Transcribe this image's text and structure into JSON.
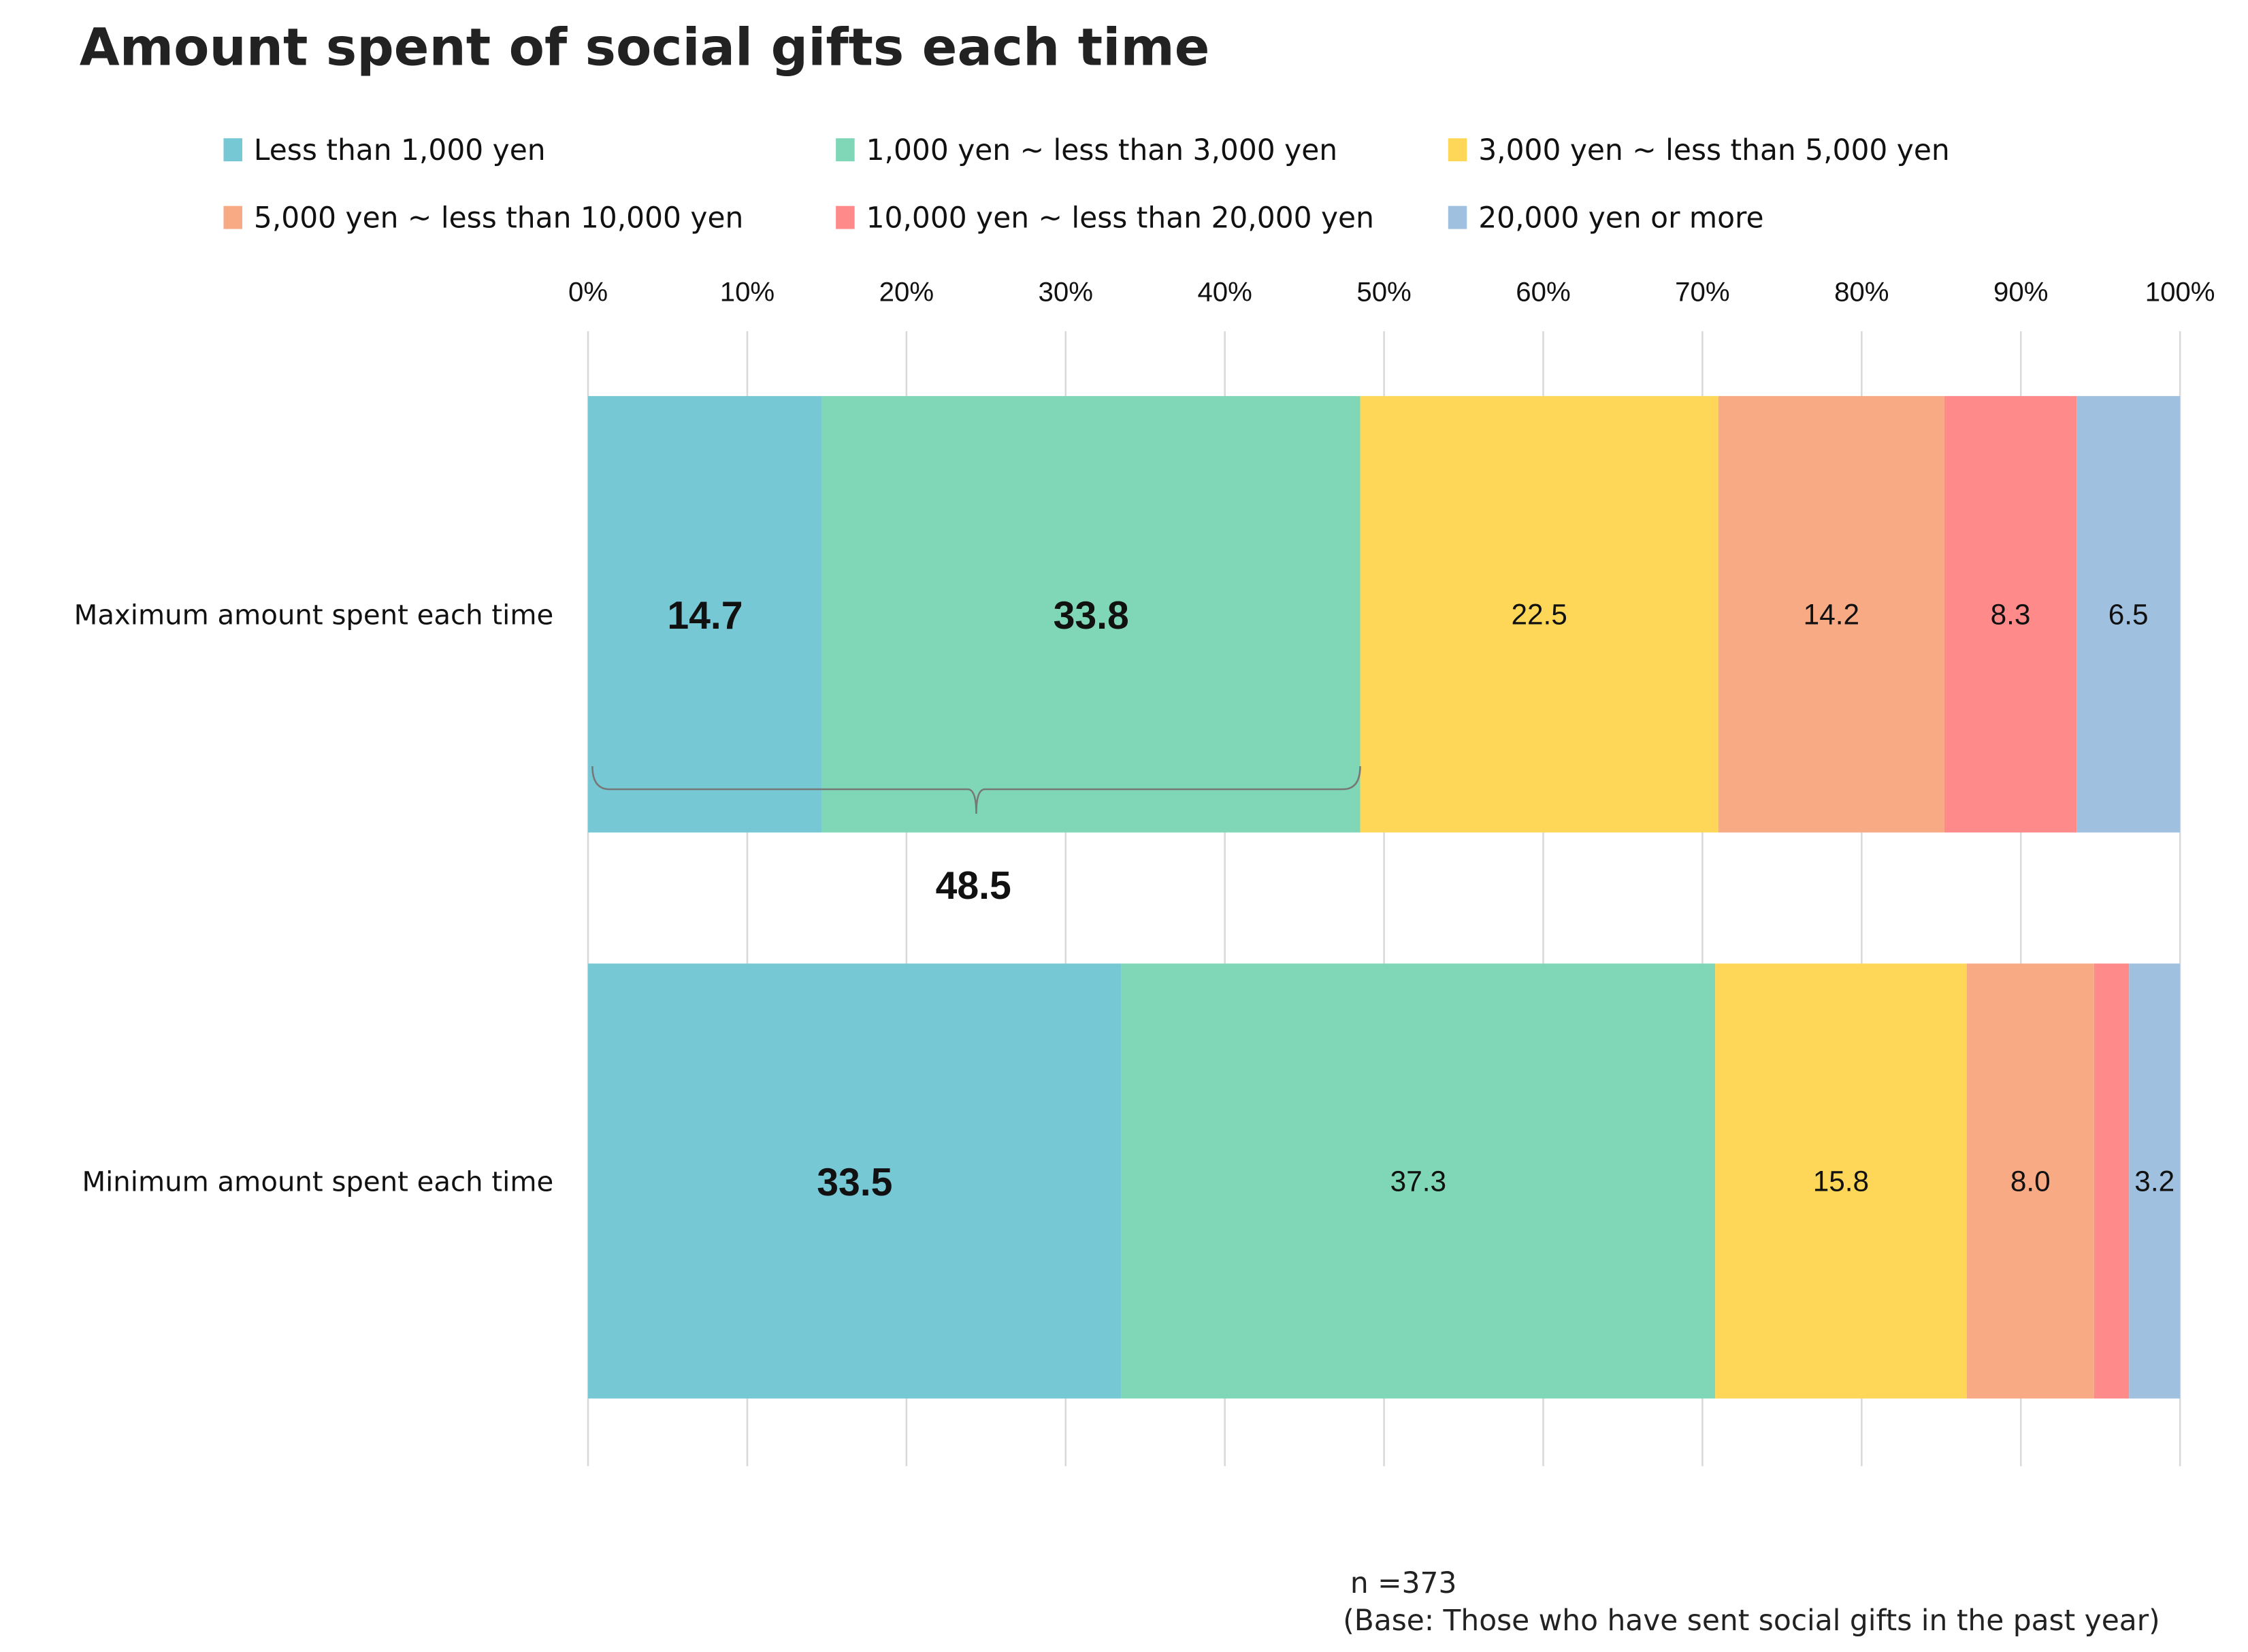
{
  "chart_data": {
    "type": "bar",
    "orientation": "horizontal",
    "stacked": "100%",
    "title": "Amount spent of social gifts each time",
    "categories": [
      "Maximum amount spent each time",
      "Minimum amount spent each time"
    ],
    "series": [
      {
        "name": "Less than 1,000 yen",
        "color": "#77c8d5",
        "values": [
          14.7,
          33.5
        ]
      },
      {
        "name": "1,000 yen ~ less than 3,000 yen",
        "color": "#7fd7b8",
        "values": [
          33.8,
          37.3
        ]
      },
      {
        "name": "3,000 yen ~ less than 5,000 yen",
        "color": "#fed758",
        "values": [
          22.5,
          15.8
        ]
      },
      {
        "name": "5,000 yen ~ less than 10,000 yen",
        "color": "#f8aa84",
        "values": [
          14.2,
          8.0
        ]
      },
      {
        "name": "10,000 yen ~ less than 20,000 yen",
        "color": "#fe8a8a",
        "values": [
          8.3,
          2.2
        ]
      },
      {
        "name": "20,000 yen or more",
        "color": "#9fc0de",
        "values": [
          6.5,
          3.2
        ]
      }
    ],
    "data_labels": [
      [
        "14.7",
        "33.8",
        "22.5",
        "14.2",
        "8.3",
        "6.5"
      ],
      [
        "33.5",
        "37.3",
        "15.8",
        "8.0",
        "",
        "3.2"
      ]
    ],
    "bold_labels": [
      [
        true,
        true,
        false,
        false,
        false,
        false
      ],
      [
        true,
        false,
        false,
        false,
        false,
        false
      ]
    ],
    "xlim": [
      0,
      100
    ],
    "x_ticks": [
      "0%",
      "10%",
      "20%",
      "30%",
      "40%",
      "50%",
      "60%",
      "70%",
      "80%",
      "90%",
      "100%"
    ],
    "grid": true,
    "legend_position": "top",
    "annotation": {
      "label": "48.5",
      "spans": "Less than 1,000 yen + 1,000 yen ~ less than 3,000 yen (Maximum)"
    }
  },
  "footer": {
    "n": "n =373",
    "base": "(Base: Those who have sent social gifts in the past year)"
  }
}
